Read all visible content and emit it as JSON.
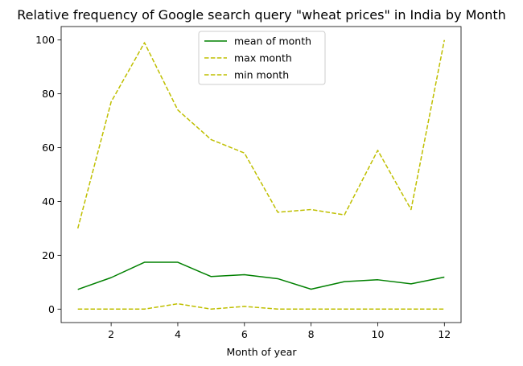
{
  "chart_data": {
    "type": "line",
    "title": "Relative frequency of Google search query \"wheat prices\" in India by Month",
    "xlabel": "Month of year",
    "ylabel": "",
    "x": [
      1,
      2,
      3,
      4,
      5,
      6,
      7,
      8,
      9,
      10,
      11,
      12
    ],
    "xlim": [
      0.5,
      12.5
    ],
    "ylim": [
      -5,
      105
    ],
    "xticks": [
      2,
      4,
      6,
      8,
      10,
      12
    ],
    "yticks": [
      0,
      20,
      40,
      60,
      80,
      100
    ],
    "grid": false,
    "legend_position": "top-center",
    "series": [
      {
        "name": "mean of month",
        "color": "#008000",
        "style": "solid",
        "values": [
          7.3,
          11.7,
          17.4,
          17.4,
          12.1,
          12.8,
          11.3,
          7.4,
          10.2,
          10.9,
          9.4,
          11.9
        ]
      },
      {
        "name": "max month",
        "color": "#bfbf00",
        "style": "dashed",
        "values": [
          30,
          77,
          99,
          74,
          63,
          58,
          36,
          37,
          35,
          59,
          37,
          100
        ]
      },
      {
        "name": "min month",
        "color": "#bfbf00",
        "style": "dashed",
        "values": [
          0,
          0,
          0,
          2,
          0,
          1,
          0,
          0,
          0,
          0,
          0,
          0
        ]
      }
    ]
  }
}
